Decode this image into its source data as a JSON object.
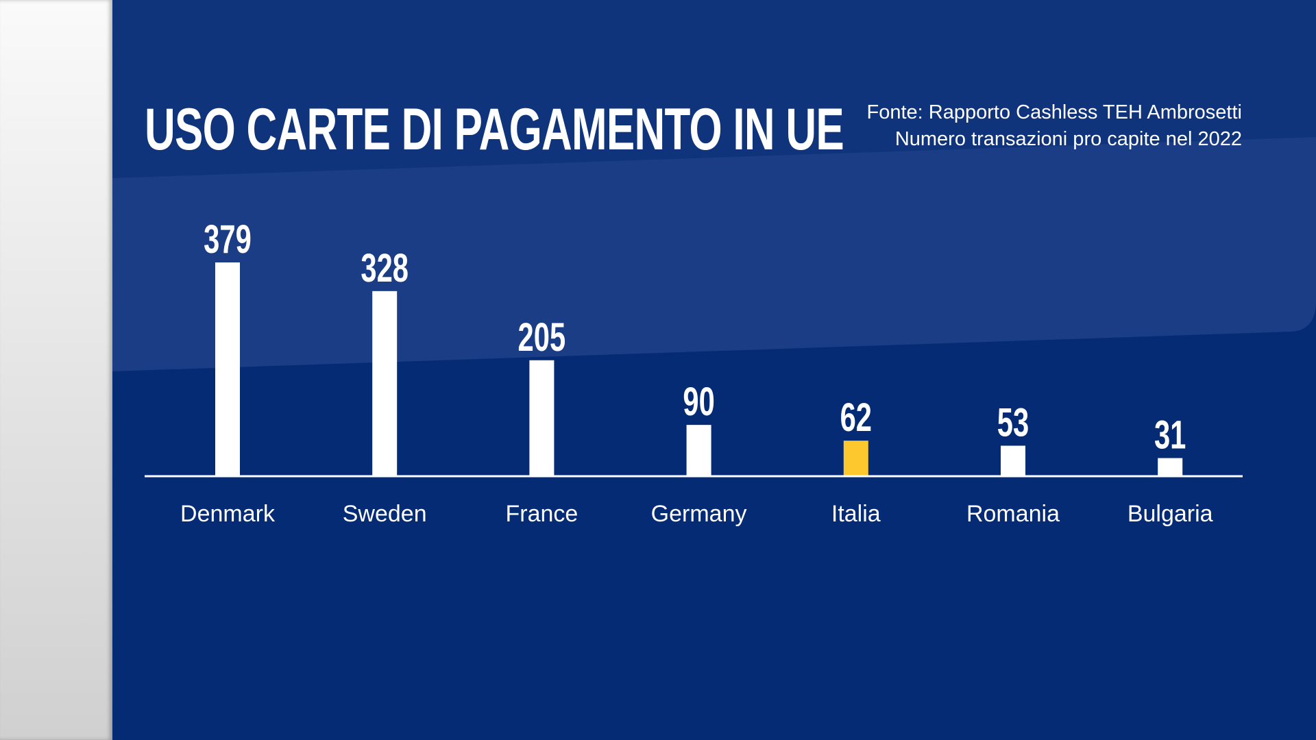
{
  "title": "USO CARTE DI PAGAMENTO IN UE",
  "source_line1": "Fonte: Rapporto Cashless TEH Ambrosetti",
  "source_line2": "Numero transazioni pro capite nel 2022",
  "colors": {
    "background": "#042b74",
    "bar": "#ffffff",
    "highlight": "#fdc72e"
  },
  "chart_data": {
    "type": "bar",
    "title": "USO CARTE DI PAGAMENTO IN UE",
    "categories": [
      "Denmark",
      "Sweden",
      "France",
      "Germany",
      "Italia",
      "Romania",
      "Bulgaria"
    ],
    "values": [
      379,
      328,
      205,
      90,
      62,
      53,
      31
    ],
    "highlight": "Italia",
    "grid": false,
    "data_labels": true
  }
}
